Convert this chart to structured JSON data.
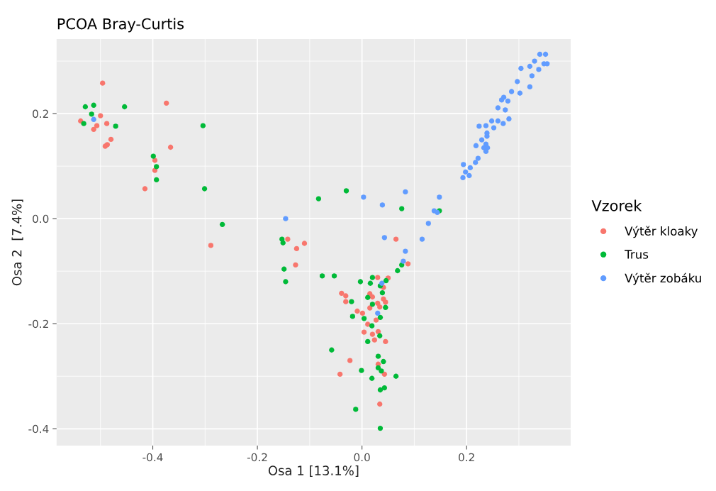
{
  "chart_data": {
    "type": "scatter",
    "title": "PCOA Bray-Curtis",
    "xlabel": "Osa 1 [13.1%]",
    "ylabel": "Osa 2  [7.4%]",
    "legend_title": "Vzorek",
    "legend": "right",
    "grid": true,
    "marker": "circle",
    "xlim": [
      -0.584,
      0.399
    ],
    "ylim": [
      -0.432,
      0.342
    ],
    "xticks": [
      -0.4,
      -0.2,
      {
        "value": 0,
        "label": "0.0"
      },
      0.2
    ],
    "yticks": [
      -0.4,
      -0.2,
      {
        "value": 0,
        "label": "0.0"
      },
      0.2
    ],
    "series": [
      {
        "name": "Výtěr kloaky",
        "color": "#f8766d",
        "x": [
          -0.496,
          -0.374,
          -0.5,
          -0.538,
          -0.488,
          -0.507,
          -0.513,
          -0.48,
          -0.487,
          -0.491,
          -0.366,
          -0.396,
          -0.396,
          -0.415,
          -0.289,
          -0.142,
          -0.11,
          -0.125,
          -0.127,
          0.065,
          0.088,
          0.03,
          0.05,
          0.041,
          -0.039,
          -0.031,
          -0.031,
          0.015,
          0.02,
          0.041,
          0.045,
          0.03,
          0.034,
          0.015,
          -0.009,
          0.001,
          null,
          null,
          0.027,
          0.011,
          0.004,
          0.02,
          0.031,
          0.024,
          0.045,
          -0.023,
          0.031,
          0.043,
          -0.042,
          0.034
        ],
        "values": [
          0.258,
          0.22,
          0.196,
          0.186,
          0.181,
          0.177,
          0.17,
          0.151,
          0.141,
          0.138,
          0.136,
          0.111,
          0.092,
          0.057,
          -0.051,
          -0.039,
          -0.047,
          -0.057,
          -0.088,
          -0.039,
          -0.086,
          -0.112,
          -0.113,
          -0.131,
          -0.142,
          -0.147,
          -0.158,
          -0.143,
          -0.149,
          -0.153,
          -0.159,
          -0.161,
          -0.168,
          -0.17,
          -0.176,
          -0.18,
          null,
          null,
          -0.193,
          -0.201,
          -0.216,
          -0.22,
          -0.215,
          -0.231,
          -0.234,
          -0.27,
          -0.277,
          -0.296,
          -0.296,
          -0.353
        ]
      },
      {
        "name": "Trus",
        "color": "#00ba38",
        "x": [
          -0.529,
          -0.513,
          -0.454,
          -0.517,
          -0.532,
          -0.471,
          -0.304,
          -0.399,
          -0.393,
          -0.393,
          -0.301,
          -0.267,
          -0.153,
          -0.151,
          -0.149,
          -0.146,
          -0.083,
          -0.03,
          -0.076,
          -0.053,
          0.076,
          0.148,
          0.076,
          0.068,
          0.02,
          -0.003,
          0.016,
          0.046,
          0.035,
          null,
          0.039,
          -0.02,
          0.011,
          0.02,
          0.045,
          -0.018,
          0.004,
          0.035,
          0.019,
          0.034,
          0.011,
          -0.058,
          0.031,
          0.041,
          0.031,
          0.037,
          -0.001,
          0.019,
          0.065,
          0.043,
          0.035,
          -0.012,
          0.035
        ],
        "values": [
          0.213,
          0.216,
          0.213,
          0.199,
          0.181,
          0.176,
          0.177,
          0.119,
          0.099,
          0.074,
          0.057,
          -0.011,
          -0.039,
          -0.046,
          -0.096,
          -0.12,
          0.038,
          0.053,
          -0.109,
          -0.109,
          0.019,
          0.015,
          -0.088,
          -0.099,
          -0.112,
          -0.12,
          -0.123,
          -0.118,
          -0.128,
          null,
          -0.141,
          -0.158,
          -0.15,
          -0.163,
          -0.169,
          -0.186,
          -0.19,
          -0.188,
          -0.204,
          -0.223,
          -0.234,
          -0.25,
          -0.262,
          -0.272,
          -0.284,
          -0.29,
          -0.289,
          -0.304,
          -0.3,
          -0.322,
          -0.326,
          -0.363,
          -0.399
        ]
      },
      {
        "name": "Výtěr zobáku",
        "color": "#619cff",
        "x": [
          -0.513,
          -0.146,
          0.003,
          0.083,
          0.039,
          0.043,
          0.115,
          0.127,
          0.138,
          0.144,
          0.148,
          0.083,
          0.079,
          0.038,
          0.03,
          0.34,
          0.351,
          0.33,
          0.321,
          0.304,
          0.348,
          0.354,
          0.338,
          0.325,
          0.297,
          0.321,
          0.286,
          0.302,
          0.271,
          0.279,
          0.267,
          0.26,
          0.274,
          0.281,
          0.248,
          0.26,
          0.27,
          0.252,
          0.224,
          0.237,
          0.239,
          0.239,
          0.229,
          0.218,
          0.237,
          0.233,
          0.24,
          0.237,
          0.222,
          0.217,
          0.194,
          0.207,
          0.198,
          0.205,
          0.193
        ],
        "values": [
          0.189,
          0.0,
          0.041,
          0.051,
          0.026,
          -0.036,
          -0.039,
          -0.009,
          0.015,
          0.012,
          0.041,
          -0.062,
          -0.081,
          -0.123,
          -0.18,
          0.313,
          0.313,
          0.3,
          0.29,
          0.286,
          0.295,
          0.295,
          0.284,
          0.272,
          0.261,
          0.251,
          0.242,
          0.239,
          0.231,
          0.224,
          0.226,
          0.211,
          0.207,
          0.19,
          0.186,
          0.186,
          0.181,
          0.173,
          0.176,
          0.177,
          0.163,
          0.157,
          0.15,
          0.139,
          0.142,
          0.135,
          0.135,
          0.128,
          0.115,
          0.107,
          0.103,
          0.097,
          0.089,
          0.082,
          0.078
        ]
      }
    ]
  }
}
